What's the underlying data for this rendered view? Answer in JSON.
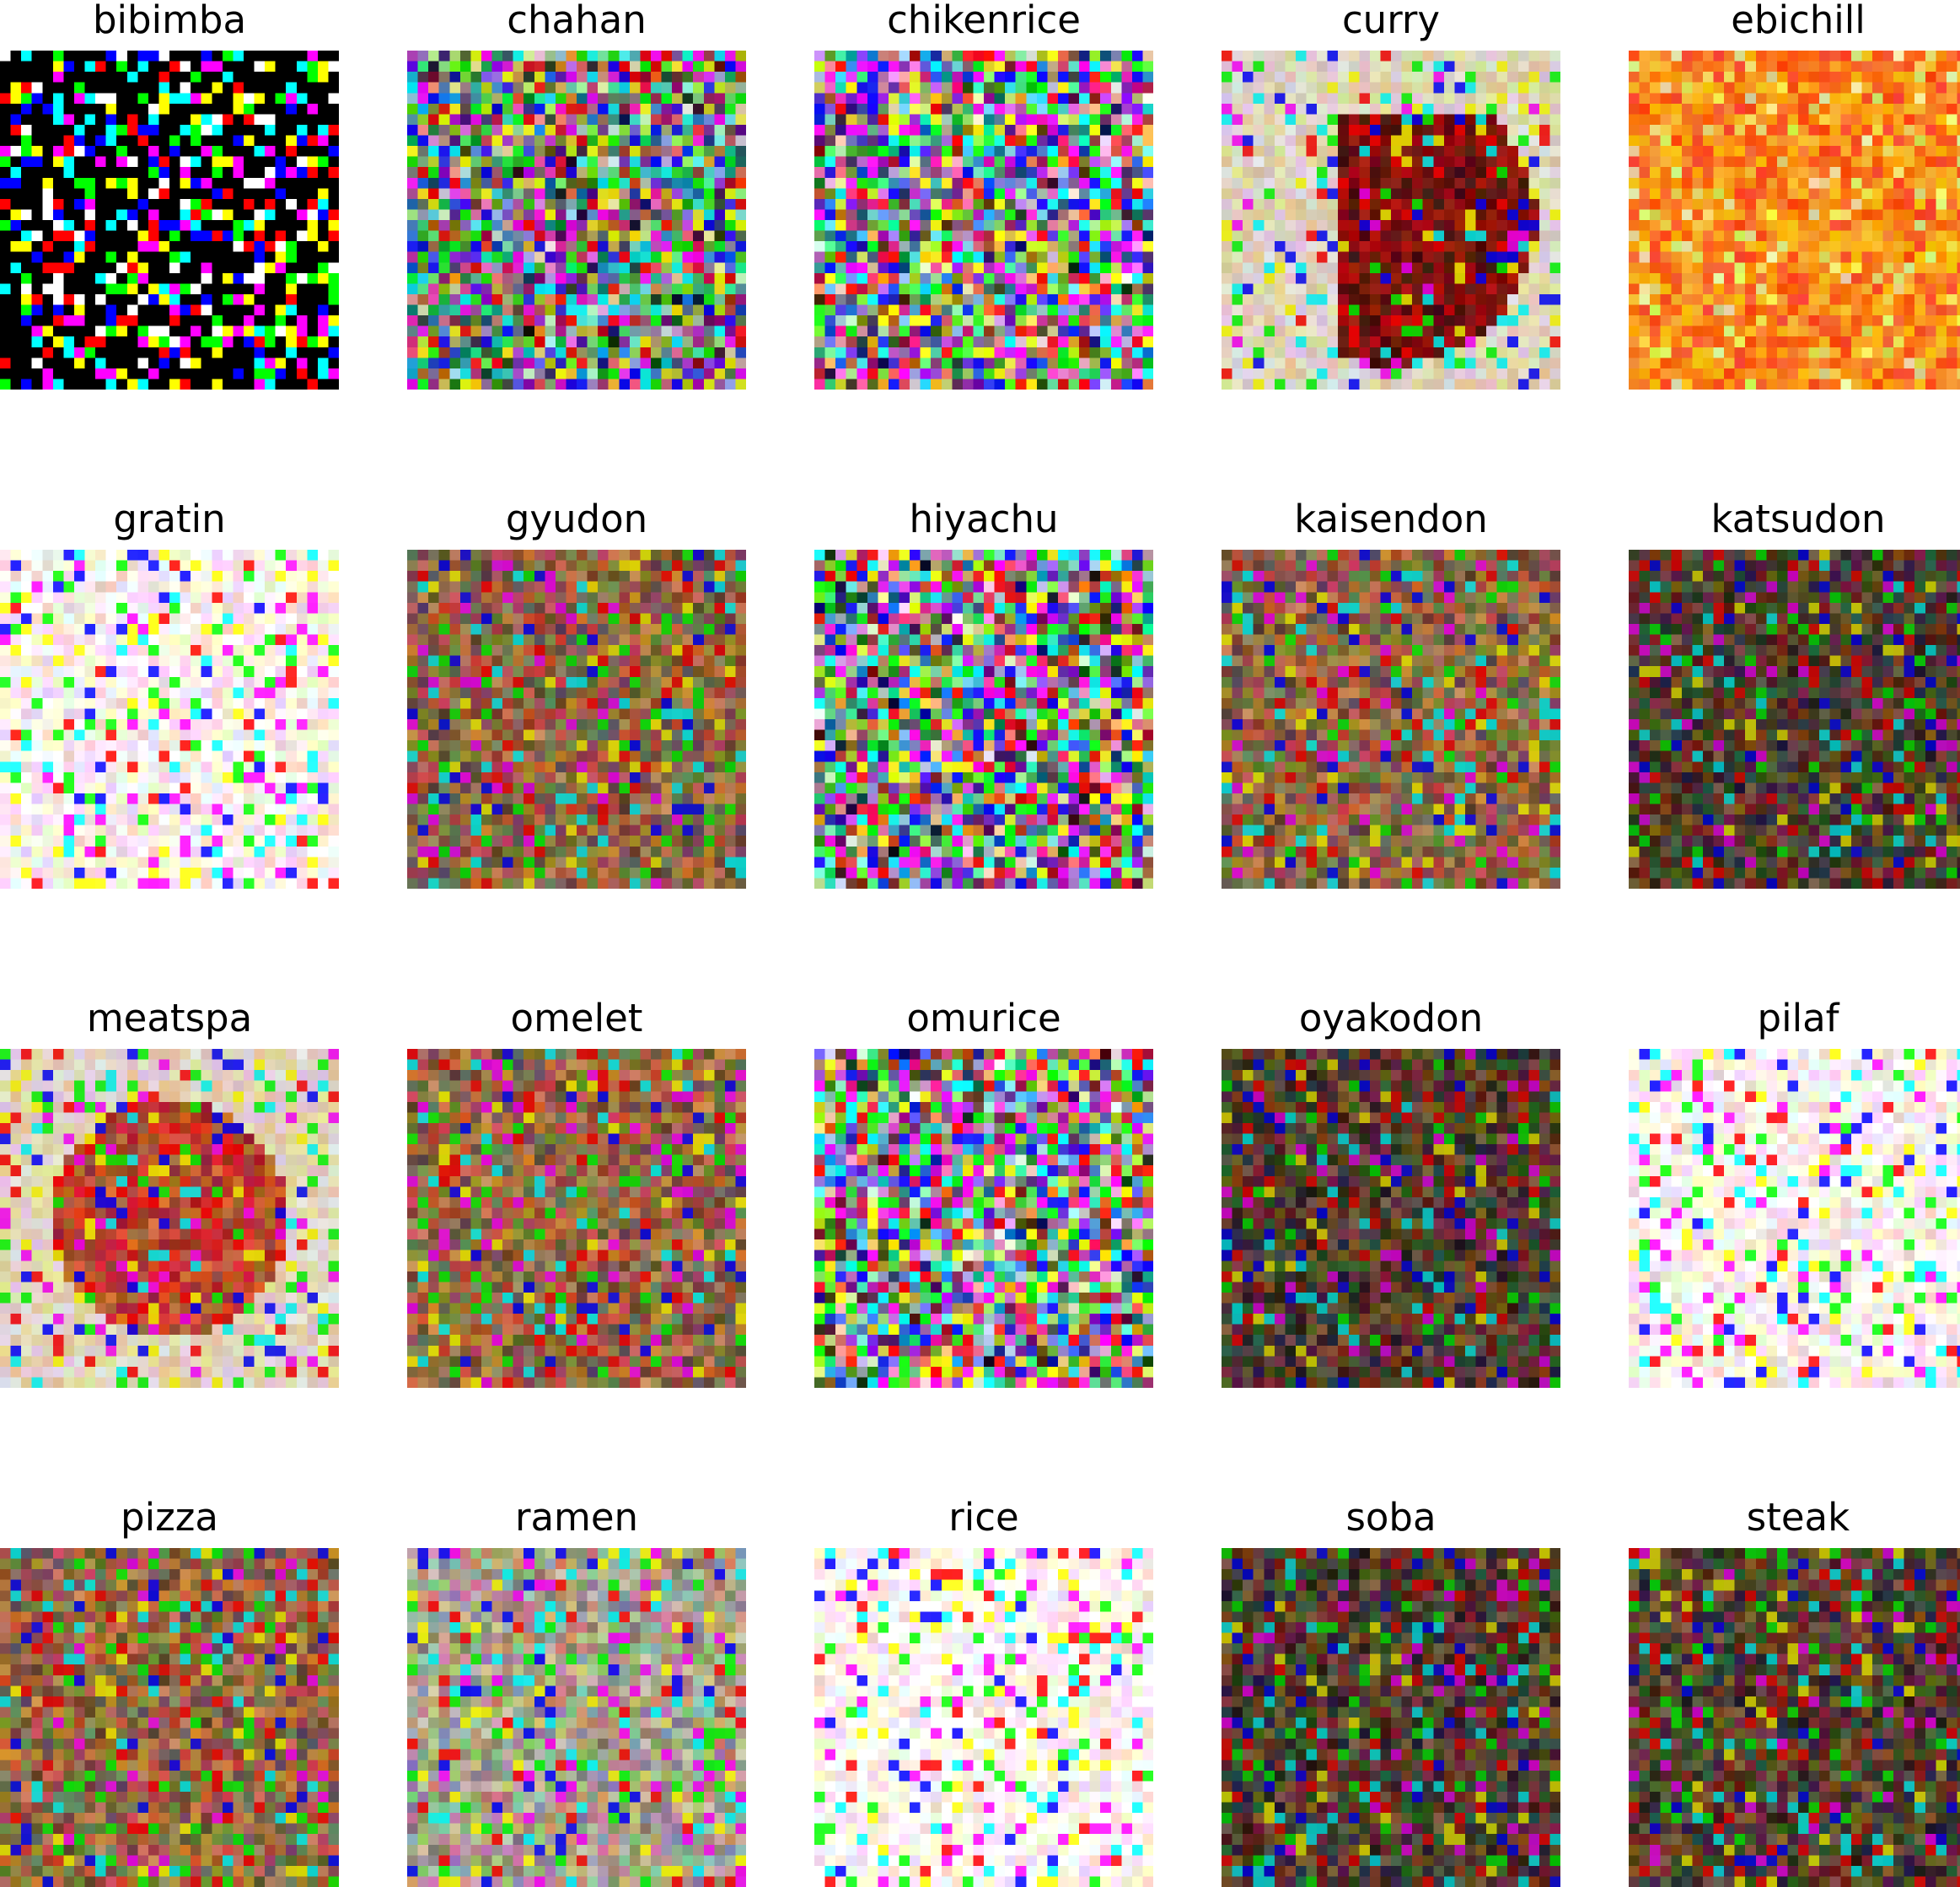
{
  "figure": {
    "panels": [
      {
        "title": "bibimba",
        "palette": "dark-saturated",
        "brightness": 0.2
      },
      {
        "title": "chahan",
        "palette": "warm",
        "brightness": 0.6
      },
      {
        "title": "chikenrice",
        "palette": "mixed",
        "brightness": 0.75
      },
      {
        "title": "curry",
        "palette": "warm-dark-center",
        "brightness": 0.55
      },
      {
        "title": "ebichill",
        "palette": "orange-red",
        "brightness": 0.6
      },
      {
        "title": "gratin",
        "palette": "light",
        "brightness": 0.85
      },
      {
        "title": "gyudon",
        "palette": "brown",
        "brightness": 0.45
      },
      {
        "title": "hiyachu",
        "palette": "mixed",
        "brightness": 0.7
      },
      {
        "title": "kaisendon",
        "palette": "brown",
        "brightness": 0.45
      },
      {
        "title": "katsudon",
        "palette": "dark",
        "brightness": 0.35
      },
      {
        "title": "meatspa",
        "palette": "red",
        "brightness": 0.55
      },
      {
        "title": "omelet",
        "palette": "brown",
        "brightness": 0.5
      },
      {
        "title": "omurice",
        "palette": "mixed-bright",
        "brightness": 0.75
      },
      {
        "title": "oyakodon",
        "palette": "dark-warm",
        "brightness": 0.35
      },
      {
        "title": "pilaf",
        "palette": "light",
        "brightness": 0.85
      },
      {
        "title": "pizza",
        "palette": "brown",
        "brightness": 0.5
      },
      {
        "title": "ramen",
        "palette": "muted",
        "brightness": 0.6
      },
      {
        "title": "rice",
        "palette": "light-bright",
        "brightness": 0.9
      },
      {
        "title": "soba",
        "palette": "dark",
        "brightness": 0.35
      },
      {
        "title": "steak",
        "palette": "brown-dark",
        "brightness": 0.4
      }
    ]
  }
}
